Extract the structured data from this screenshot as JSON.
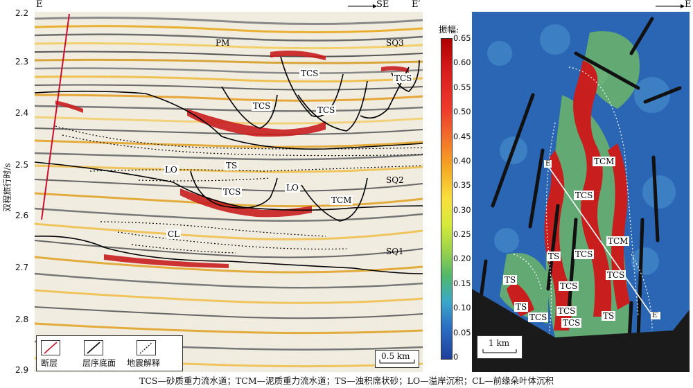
{
  "left_panel": {
    "title_left": "E",
    "title_right": "E′",
    "direction": "SE",
    "y_axis_label": "双程旅行时/s",
    "y_ticks": [
      "2.2",
      "2.3",
      "2.4",
      "2.5",
      "2.6",
      "2.7",
      "2.8",
      "2.9"
    ],
    "labels": {
      "pm": "PM",
      "sq3": "SQ3",
      "sq2": "SQ2",
      "sq1": "SQ1",
      "tcs_1": "TCS",
      "tcs_2": "TCS",
      "tcs_3": "TCS",
      "tcs_4": "TCS",
      "tcs_5": "TCS",
      "lo_1": "LO",
      "lo_2": "LO",
      "ts": "TS",
      "tcm": "TCM",
      "cl": "CL"
    },
    "legend": {
      "fault": "断层",
      "sequence_base": "层序底面",
      "seismic_interp": "地震解释"
    },
    "scale": "0.5 km"
  },
  "colorbar": {
    "title": "振幅:",
    "ticks": [
      "0.65",
      "0.60",
      "0.55",
      "0.50",
      "0.45",
      "0.40",
      "0.35",
      "0.30",
      "0.25",
      "0.20",
      "0.15",
      "0.10",
      "0.05",
      "0"
    ]
  },
  "right_panel": {
    "north": "E",
    "labels": {
      "tcm_1": "TCM",
      "tcs_1": "TCS",
      "tcm_2": "TCM",
      "tcs_2": "TCS",
      "ts_1": "TS",
      "tcs_3": "TCS",
      "ts_2": "TS",
      "tcs_4": "TCS",
      "ts_3": "TS",
      "tcs_5": "TCS",
      "tcs_6": "TCS",
      "tcs_7": "TCS",
      "ts_4": "TS",
      "e_start": "E",
      "e_end": "E′"
    },
    "scale": "1 km"
  },
  "caption": "TCS—砂质重力流水道；TCM—泥质重力流水道；TS—浊积席状砂；LO—溢岸沉积；CL—前缘朵叶体沉积"
}
